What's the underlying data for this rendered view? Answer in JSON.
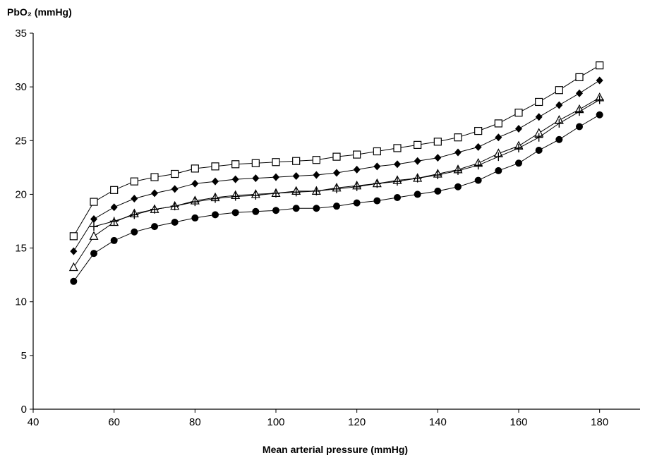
{
  "chart_data": {
    "type": "line",
    "title": "",
    "ylabel": "PbO₂ (mmHg)",
    "xlabel": "Mean arterial pressure (mmHg)",
    "xlim": [
      40,
      190
    ],
    "ylim": [
      0,
      35
    ],
    "xticks": [
      40,
      60,
      80,
      100,
      120,
      140,
      160,
      180
    ],
    "yticks": [
      0,
      5,
      10,
      15,
      20,
      25,
      30,
      35
    ],
    "grid": false,
    "x": [
      50,
      55,
      60,
      65,
      70,
      75,
      80,
      85,
      90,
      95,
      100,
      105,
      110,
      115,
      120,
      125,
      130,
      135,
      140,
      145,
      150,
      155,
      160,
      165,
      170,
      175,
      180
    ],
    "series": [
      {
        "marker": "open-square",
        "color": "#000000",
        "values": [
          16.1,
          19.3,
          20.4,
          21.2,
          21.6,
          21.9,
          22.4,
          22.6,
          22.8,
          22.9,
          23.0,
          23.1,
          23.2,
          23.5,
          23.7,
          24.0,
          24.3,
          24.6,
          24.9,
          25.3,
          25.9,
          26.6,
          27.6,
          28.6,
          29.7,
          30.9,
          32.0
        ]
      },
      {
        "marker": "filled-diamond",
        "color": "#000000",
        "values": [
          14.7,
          17.7,
          18.8,
          19.6,
          20.1,
          20.5,
          21.0,
          21.2,
          21.4,
          21.5,
          21.6,
          21.7,
          21.8,
          22.0,
          22.3,
          22.6,
          22.8,
          23.1,
          23.4,
          23.9,
          24.4,
          25.3,
          26.1,
          27.2,
          28.3,
          29.4,
          30.6
        ]
      },
      {
        "marker": "open-triangle",
        "color": "#000000",
        "values": [
          13.2,
          16.1,
          17.4,
          18.2,
          18.6,
          18.9,
          19.4,
          19.7,
          19.9,
          20.0,
          20.1,
          20.3,
          20.3,
          20.6,
          20.8,
          21.0,
          21.3,
          21.5,
          21.9,
          22.3,
          22.9,
          23.8,
          24.5,
          25.7,
          26.9,
          27.9,
          29.0
        ]
      },
      {
        "marker": "plus",
        "color": "#000000",
        "values": [
          null,
          17.0,
          17.5,
          18.1,
          18.6,
          18.9,
          19.3,
          19.6,
          19.8,
          19.9,
          20.1,
          20.2,
          20.3,
          20.5,
          20.7,
          21.0,
          21.2,
          21.5,
          21.8,
          22.2,
          22.7,
          23.5,
          24.3,
          25.3,
          26.6,
          27.7,
          28.8
        ]
      },
      {
        "marker": "filled-circle",
        "color": "#000000",
        "values": [
          11.9,
          14.5,
          15.7,
          16.5,
          17.0,
          17.4,
          17.8,
          18.1,
          18.3,
          18.4,
          18.5,
          18.7,
          18.7,
          18.9,
          19.2,
          19.4,
          19.7,
          20.0,
          20.3,
          20.7,
          21.3,
          22.2,
          22.9,
          24.1,
          25.1,
          26.3,
          27.4
        ]
      }
    ]
  }
}
